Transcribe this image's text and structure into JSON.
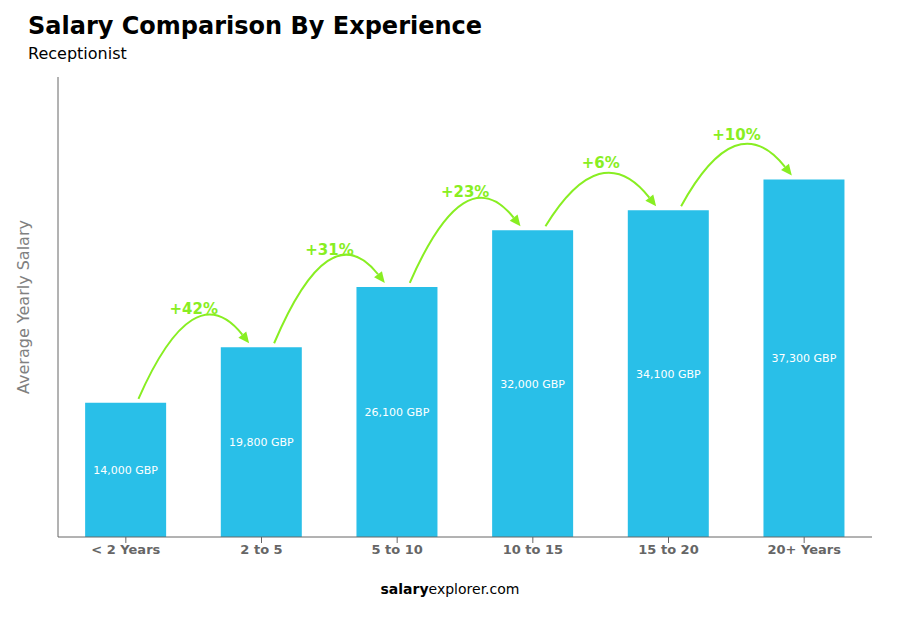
{
  "chart_data": {
    "type": "bar",
    "title": "Salary Comparison By Experience",
    "subtitle": "Receptionist",
    "categories": [
      "< 2 Years",
      "2 to 5",
      "5 to 10",
      "10 to 15",
      "15 to 20",
      "20+ Years"
    ],
    "values": [
      14000,
      19800,
      26100,
      32000,
      34100,
      37300
    ],
    "value_labels": [
      "14,000 GBP",
      "19,800 GBP",
      "26,100 GBP",
      "32,000 GBP",
      "34,100 GBP",
      "37,300 GBP"
    ],
    "data_labels": true,
    "color": "#29bfe8",
    "ylabel": "Average Yearly Salary",
    "ylim": [
      0,
      48000
    ],
    "tick_labels": "x",
    "grid": false,
    "annotations": [
      {
        "text": "+42%",
        "from": "< 2 Years",
        "to": "2 to 5",
        "color": "#88ee22"
      },
      {
        "text": "+31%",
        "from": "2 to 5",
        "to": "5 to 10",
        "color": "#88ee22"
      },
      {
        "text": "+23%",
        "from": "5 to 10",
        "to": "10 to 15",
        "color": "#88ee22"
      },
      {
        "text": "+6%",
        "from": "10 to 15",
        "to": "15 to 20",
        "color": "#88ee22"
      },
      {
        "text": "+10%",
        "from": "15 to 20",
        "to": "20+ Years",
        "color": "#88ee22"
      }
    ],
    "footer": [
      "salary",
      "explorer.com"
    ]
  }
}
